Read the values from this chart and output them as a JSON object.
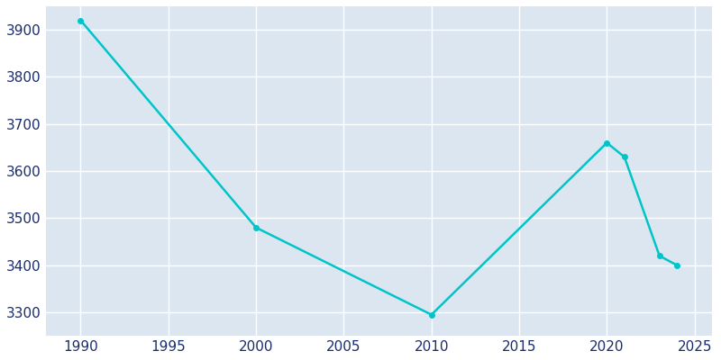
{
  "years": [
    1990,
    2000,
    2010,
    2020,
    2021,
    2023,
    2024
  ],
  "population": [
    3920,
    3480,
    3295,
    3660,
    3630,
    3420,
    3400
  ],
  "line_color": "#00C5C8",
  "marker_color": "#00C5C8",
  "fig_bg_color": "#FFFFFF",
  "plot_bg_color": "#DCE6F1",
  "grid_color": "#FFFFFF",
  "xlim": [
    1988,
    2026
  ],
  "ylim": [
    3250,
    3950
  ],
  "xticks": [
    1990,
    1995,
    2000,
    2005,
    2010,
    2015,
    2020,
    2025
  ],
  "yticks": [
    3300,
    3400,
    3500,
    3600,
    3700,
    3800,
    3900
  ],
  "tick_color": "#1A2C6B",
  "tick_fontsize": 11,
  "line_width": 1.8,
  "marker_size": 4
}
